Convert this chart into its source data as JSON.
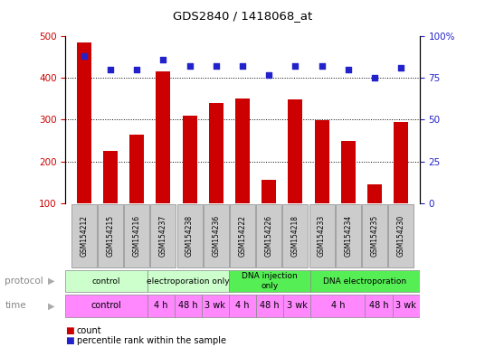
{
  "title": "GDS2840 / 1418068_at",
  "samples": [
    "GSM154212",
    "GSM154215",
    "GSM154216",
    "GSM154237",
    "GSM154238",
    "GSM154236",
    "GSM154222",
    "GSM154226",
    "GSM154218",
    "GSM154233",
    "GSM154234",
    "GSM154235",
    "GSM154230"
  ],
  "counts": [
    485,
    225,
    265,
    415,
    310,
    340,
    350,
    155,
    348,
    298,
    250,
    145,
    295
  ],
  "percentiles": [
    88,
    80,
    80,
    86,
    82,
    82,
    82,
    77,
    82,
    82,
    80,
    75,
    81
  ],
  "bar_color": "#cc0000",
  "dot_color": "#2222cc",
  "ylim_left": [
    100,
    500
  ],
  "ylim_right": [
    0,
    100
  ],
  "yticks_left": [
    100,
    200,
    300,
    400,
    500
  ],
  "yticks_right": [
    0,
    25,
    50,
    75,
    100
  ],
  "grid_lines": [
    200,
    300,
    400
  ],
  "protocol_groups": [
    {
      "label": "control",
      "start": 0,
      "end": 3,
      "color": "#ccffcc"
    },
    {
      "label": "electroporation only",
      "start": 3,
      "end": 6,
      "color": "#ccffcc"
    },
    {
      "label": "DNA injection\nonly",
      "start": 6,
      "end": 9,
      "color": "#55ee55"
    },
    {
      "label": "DNA electroporation",
      "start": 9,
      "end": 13,
      "color": "#55ee55"
    }
  ],
  "time_groups": [
    {
      "label": "control",
      "start": 0,
      "end": 3
    },
    {
      "label": "4 h",
      "start": 3,
      "end": 4
    },
    {
      "label": "48 h",
      "start": 4,
      "end": 5
    },
    {
      "label": "3 wk",
      "start": 5,
      "end": 6
    },
    {
      "label": "4 h",
      "start": 6,
      "end": 7
    },
    {
      "label": "48 h",
      "start": 7,
      "end": 8
    },
    {
      "label": "3 wk",
      "start": 8,
      "end": 9
    },
    {
      "label": "4 h",
      "start": 9,
      "end": 11
    },
    {
      "label": "48 h",
      "start": 11,
      "end": 12
    },
    {
      "label": "3 wk",
      "start": 12,
      "end": 13
    }
  ],
  "time_color": "#ff88ff",
  "background_color": "#ffffff",
  "tick_label_color_left": "#cc0000",
  "tick_label_color_right": "#2222cc",
  "sample_bg": "#cccccc",
  "protocol_label_fontsize": 6.5,
  "time_label_fontsize": 7,
  "bar_width": 0.55
}
